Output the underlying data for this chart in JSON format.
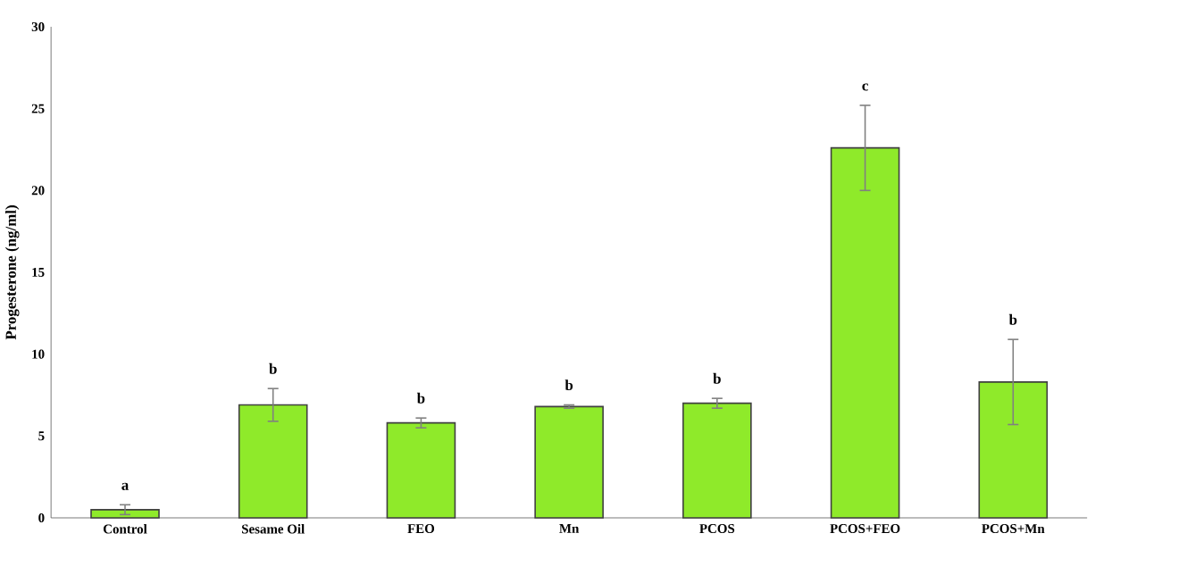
{
  "chart_data": {
    "type": "bar",
    "ylabel": "Progesterone (ng/ml)",
    "categories": [
      "Control",
      "Sesame Oil",
      "FEO",
      "Mn",
      "PCOS",
      "PCOS+FEO",
      "PCOS+Mn"
    ],
    "values": [
      0.5,
      6.9,
      5.8,
      6.8,
      7.0,
      22.6,
      8.3
    ],
    "errors": [
      0.3,
      1.0,
      0.3,
      0.1,
      0.3,
      2.6,
      2.6
    ],
    "color": "#8fea2a",
    "ylim": [
      0,
      30
    ],
    "yticks": [
      0,
      5,
      10,
      15,
      20,
      25,
      30
    ],
    "annotations": [
      {
        "text": "a",
        "x": "Control",
        "y": 0.8
      },
      {
        "text": "b",
        "x": "Sesame Oil",
        "y": 7.9
      },
      {
        "text": "b",
        "x": "FEO",
        "y": 6.1
      },
      {
        "text": "b",
        "x": "Mn",
        "y": 6.9
      },
      {
        "text": "b",
        "x": "PCOS",
        "y": 7.3
      },
      {
        "text": "c",
        "x": "PCOS+FEO",
        "y": 25.2
      },
      {
        "text": "b",
        "x": "PCOS+Mn",
        "y": 10.9
      }
    ]
  }
}
